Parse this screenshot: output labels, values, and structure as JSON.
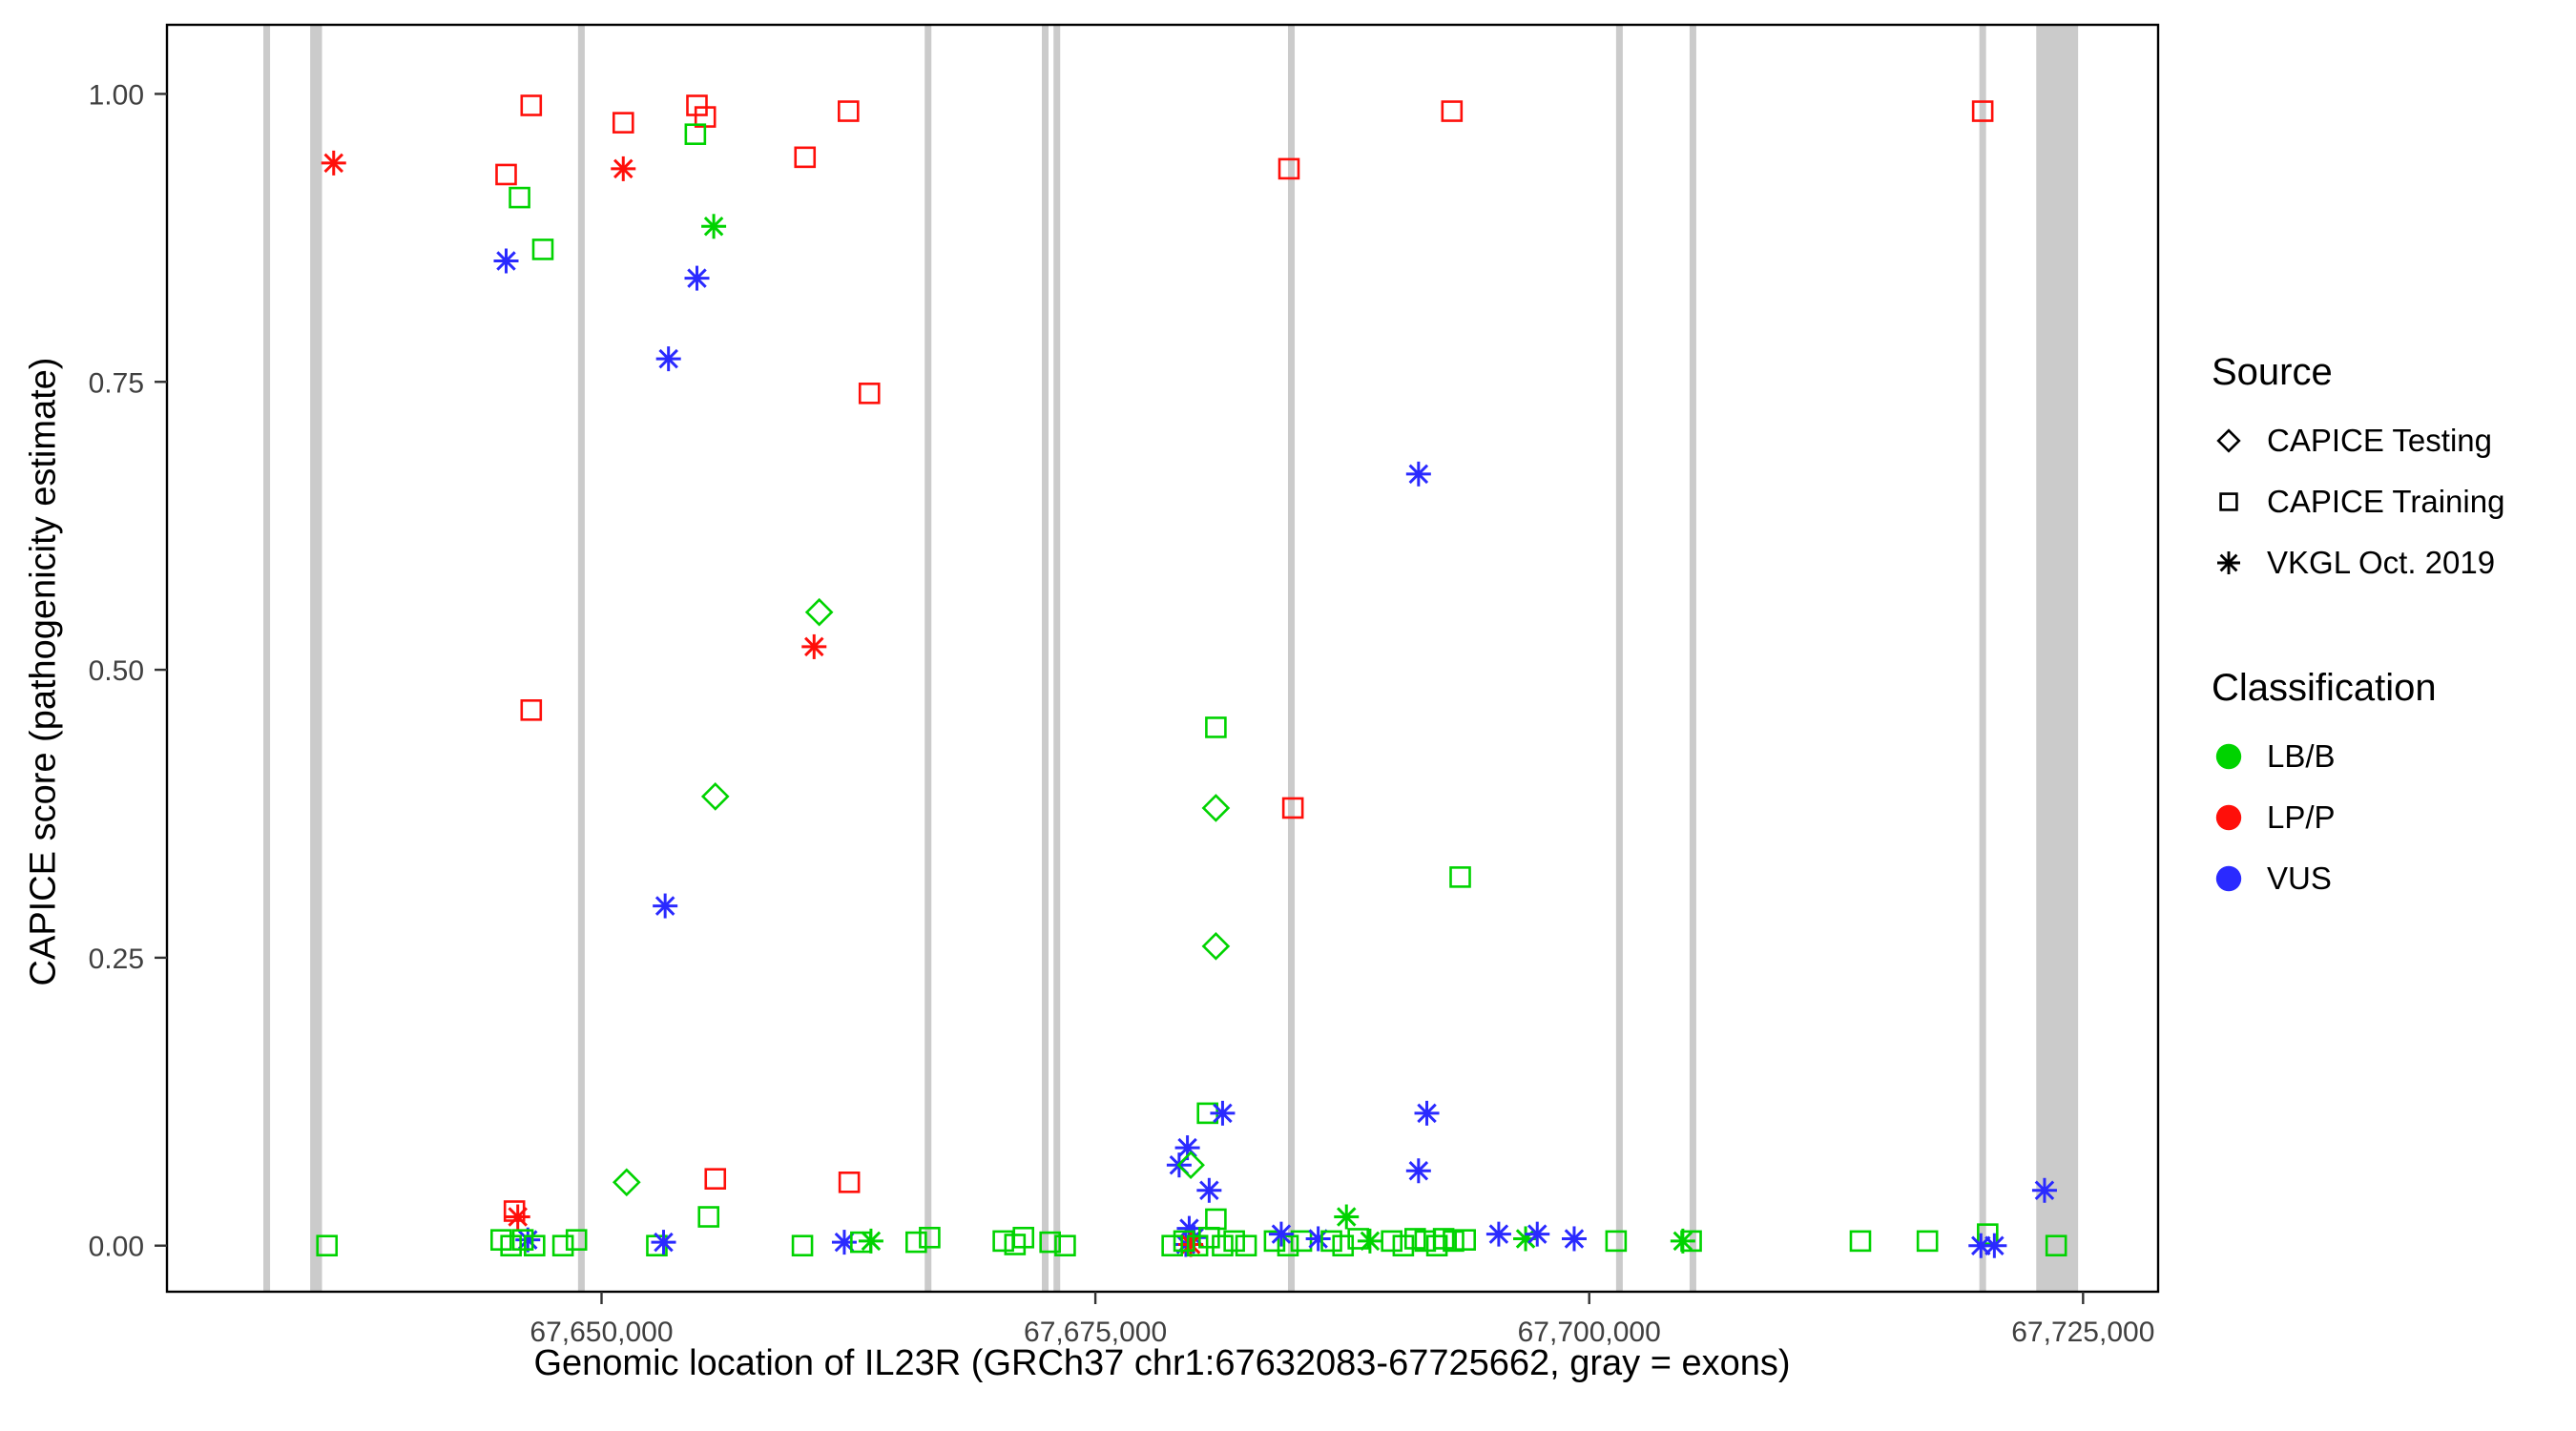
{
  "chart_data": {
    "type": "scatter",
    "xlabel": "Genomic location of IL23R (GRCh37 chr1:67632083-67725662, gray = exons)",
    "ylabel": "CAPICE score (pathogenicity estimate)",
    "xlim": [
      67628000,
      67728800
    ],
    "ylim": [
      -0.04,
      1.06
    ],
    "grid": false,
    "panel_border_color": "#000000",
    "exon_color": "#cbcbcb",
    "tick_label_color": "#404040",
    "x_ticks": [
      {
        "value": 67650000,
        "label": "67,650,000"
      },
      {
        "value": 67675000,
        "label": "67,675,000"
      },
      {
        "value": 67700000,
        "label": "67,700,000"
      },
      {
        "value": 67725000,
        "label": "67,725,000"
      }
    ],
    "y_ticks": [
      {
        "value": 0.0,
        "label": "0.00"
      },
      {
        "value": 0.25,
        "label": "0.25"
      },
      {
        "value": 0.5,
        "label": "0.50"
      },
      {
        "value": 0.75,
        "label": "0.75"
      },
      {
        "value": 1.0,
        "label": "1.00"
      }
    ],
    "classification_colors": {
      "LB/B": "#00D300",
      "LP/P": "#FF0F0A",
      "VUS": "#2A2AFF"
    },
    "shape_source_map": {
      "diamond": "CAPICE Testing",
      "square": "CAPICE Training",
      "asterisk": "VKGL Oct. 2019"
    },
    "exons": [
      [
        67632880,
        67633220
      ],
      [
        67635250,
        67635850
      ],
      [
        67648810,
        67649150
      ],
      [
        67666360,
        67666700
      ],
      [
        67672290,
        67672630
      ],
      [
        67672880,
        67673220
      ],
      [
        67684750,
        67685090
      ],
      [
        67701360,
        67701700
      ],
      [
        67705080,
        67705420
      ],
      [
        67719750,
        67720090
      ],
      [
        67722630,
        67724750
      ]
    ],
    "point_format": [
      "x_genomic_position",
      "capice_score",
      "classification",
      "shape"
    ],
    "points": [
      [
        67636440,
        0.94,
        "LP/P",
        "asterisk"
      ],
      [
        67645170,
        0.93,
        "LP/P",
        "square"
      ],
      [
        67646440,
        0.99,
        "LP/P",
        "square"
      ],
      [
        67645850,
        0.91,
        "LB/B",
        "square"
      ],
      [
        67647030,
        0.865,
        "LB/B",
        "square"
      ],
      [
        67645170,
        0.855,
        "VUS",
        "asterisk"
      ],
      [
        67651100,
        0.975,
        "LP/P",
        "square"
      ],
      [
        67651100,
        0.935,
        "LP/P",
        "asterisk"
      ],
      [
        67654830,
        0.99,
        "LP/P",
        "square"
      ],
      [
        67655250,
        0.98,
        "LP/P",
        "square"
      ],
      [
        67654750,
        0.965,
        "LB/B",
        "square"
      ],
      [
        67655680,
        0.885,
        "LB/B",
        "asterisk"
      ],
      [
        67654830,
        0.84,
        "VUS",
        "asterisk"
      ],
      [
        67653390,
        0.77,
        "VUS",
        "asterisk"
      ],
      [
        67660300,
        0.945,
        "LP/P",
        "square"
      ],
      [
        67662500,
        0.985,
        "LP/P",
        "square"
      ],
      [
        67663560,
        0.74,
        "LP/P",
        "square"
      ],
      [
        67684800,
        0.935,
        "LP/P",
        "square"
      ],
      [
        67693050,
        0.985,
        "LP/P",
        "square"
      ],
      [
        67719920,
        0.985,
        "LP/P",
        "square"
      ],
      [
        67691360,
        0.67,
        "VUS",
        "asterisk"
      ],
      [
        67661020,
        0.55,
        "LB/B",
        "diamond"
      ],
      [
        67660760,
        0.52,
        "LP/P",
        "asterisk"
      ],
      [
        67646440,
        0.465,
        "LP/P",
        "square"
      ],
      [
        67655760,
        0.39,
        "LB/B",
        "diamond"
      ],
      [
        67653220,
        0.295,
        "VUS",
        "asterisk"
      ],
      [
        67681100,
        0.45,
        "LB/B",
        "square"
      ],
      [
        67681100,
        0.38,
        "LB/B",
        "diamond"
      ],
      [
        67685000,
        0.38,
        "LP/P",
        "square"
      ],
      [
        67681100,
        0.26,
        "LB/B",
        "diamond"
      ],
      [
        67693470,
        0.32,
        "LB/B",
        "square"
      ],
      [
        67691780,
        0.115,
        "VUS",
        "asterisk"
      ],
      [
        67691360,
        0.065,
        "VUS",
        "asterisk"
      ],
      [
        67636100,
        0.0,
        "LB/B",
        "square"
      ],
      [
        67645590,
        0.03,
        "LP/P",
        "square"
      ],
      [
        67645760,
        0.025,
        "LP/P",
        "asterisk"
      ],
      [
        67646270,
        0.005,
        "VUS",
        "asterisk"
      ],
      [
        67644920,
        0.005,
        "LB/B",
        "square"
      ],
      [
        67645420,
        0.0,
        "LB/B",
        "square"
      ],
      [
        67646020,
        0.005,
        "LB/B",
        "square"
      ],
      [
        67646610,
        0.0,
        "LB/B",
        "square"
      ],
      [
        67648050,
        0.0,
        "LB/B",
        "square"
      ],
      [
        67648730,
        0.005,
        "LB/B",
        "square"
      ],
      [
        67651270,
        0.055,
        "LB/B",
        "diamond"
      ],
      [
        67652800,
        0.0,
        "LB/B",
        "square"
      ],
      [
        67653140,
        0.003,
        "VUS",
        "asterisk"
      ],
      [
        67655420,
        0.025,
        "LB/B",
        "square"
      ],
      [
        67655760,
        0.058,
        "LP/P",
        "square"
      ],
      [
        67660170,
        0.0,
        "LB/B",
        "square"
      ],
      [
        67662540,
        0.055,
        "LP/P",
        "square"
      ],
      [
        67662290,
        0.003,
        "VUS",
        "asterisk"
      ],
      [
        67663130,
        0.003,
        "LB/B",
        "square"
      ],
      [
        67663640,
        0.004,
        "LB/B",
        "asterisk"
      ],
      [
        67665930,
        0.003,
        "LB/B",
        "square"
      ],
      [
        67666610,
        0.007,
        "LB/B",
        "square"
      ],
      [
        67670340,
        0.004,
        "LB/B",
        "square"
      ],
      [
        67670930,
        0.001,
        "LB/B",
        "square"
      ],
      [
        67671360,
        0.007,
        "LB/B",
        "square"
      ],
      [
        67672710,
        0.003,
        "LB/B",
        "square"
      ],
      [
        67673470,
        0.0,
        "LB/B",
        "square"
      ],
      [
        67679660,
        0.085,
        "VUS",
        "asterisk"
      ],
      [
        67679240,
        0.07,
        "VUS",
        "asterisk"
      ],
      [
        67679830,
        0.07,
        "LB/B",
        "diamond"
      ],
      [
        67680680,
        0.115,
        "LB/B",
        "square"
      ],
      [
        67681440,
        0.115,
        "VUS",
        "asterisk"
      ],
      [
        67680760,
        0.048,
        "VUS",
        "asterisk"
      ],
      [
        67681100,
        0.023,
        "LB/B",
        "square"
      ],
      [
        67679750,
        0.015,
        "VUS",
        "asterisk"
      ],
      [
        67680000,
        0.007,
        "VUS",
        "asterisk"
      ],
      [
        67679580,
        0.001,
        "VUS",
        "asterisk"
      ],
      [
        67679830,
        0.001,
        "LP/P",
        "asterisk"
      ],
      [
        67678890,
        0.0,
        "LB/B",
        "square"
      ],
      [
        67679490,
        0.004,
        "LB/B",
        "square"
      ],
      [
        67680170,
        0.0,
        "LB/B",
        "square"
      ],
      [
        67680760,
        0.007,
        "LB/B",
        "square"
      ],
      [
        67681440,
        0.0,
        "LB/B",
        "square"
      ],
      [
        67682030,
        0.004,
        "LB/B",
        "square"
      ],
      [
        67682630,
        0.0,
        "LB/B",
        "square"
      ],
      [
        67684070,
        0.004,
        "LB/B",
        "square"
      ],
      [
        67684750,
        0.0,
        "LB/B",
        "square"
      ],
      [
        67685430,
        0.004,
        "LB/B",
        "square"
      ],
      [
        67684410,
        0.01,
        "VUS",
        "asterisk"
      ],
      [
        67686280,
        0.006,
        "VUS",
        "asterisk"
      ],
      [
        67687710,
        0.025,
        "LB/B",
        "asterisk"
      ],
      [
        67686950,
        0.004,
        "LB/B",
        "square"
      ],
      [
        67687540,
        0.0,
        "LB/B",
        "square"
      ],
      [
        67688310,
        0.006,
        "LB/B",
        "square"
      ],
      [
        67688900,
        0.004,
        "LB/B",
        "asterisk"
      ],
      [
        67690000,
        0.004,
        "LB/B",
        "square"
      ],
      [
        67690590,
        0.0,
        "LB/B",
        "square"
      ],
      [
        67691190,
        0.006,
        "LB/B",
        "square"
      ],
      [
        67691700,
        0.004,
        "LB/B",
        "square"
      ],
      [
        67692290,
        0.0,
        "LB/B",
        "square"
      ],
      [
        67692630,
        0.006,
        "LB/B",
        "square"
      ],
      [
        67693130,
        0.004,
        "LB/B",
        "square"
      ],
      [
        67693720,
        0.005,
        "LB/B",
        "square"
      ],
      [
        67695420,
        0.01,
        "VUS",
        "asterisk"
      ],
      [
        67696780,
        0.006,
        "LB/B",
        "asterisk"
      ],
      [
        67697370,
        0.01,
        "VUS",
        "asterisk"
      ],
      [
        67699240,
        0.006,
        "VUS",
        "asterisk"
      ],
      [
        67701360,
        0.004,
        "LB/B",
        "square"
      ],
      [
        67704740,
        0.004,
        "LB/B",
        "asterisk"
      ],
      [
        67705160,
        0.004,
        "LB/B",
        "square"
      ],
      [
        67713730,
        0.004,
        "LB/B",
        "square"
      ],
      [
        67717120,
        0.004,
        "LB/B",
        "square"
      ],
      [
        67720170,
        0.01,
        "LB/B",
        "square"
      ],
      [
        67719830,
        0.0,
        "VUS",
        "asterisk"
      ],
      [
        67720510,
        0.0,
        "VUS",
        "asterisk"
      ],
      [
        67723050,
        0.048,
        "VUS",
        "asterisk"
      ],
      [
        67723640,
        0.0,
        "LB/B",
        "square"
      ]
    ],
    "legend": {
      "source_title": "Source",
      "source_items": [
        {
          "label": "CAPICE Testing",
          "shape": "diamond"
        },
        {
          "label": "CAPICE Training",
          "shape": "square"
        },
        {
          "label": "VKGL Oct. 2019",
          "shape": "asterisk"
        }
      ],
      "classification_title": "Classification",
      "classification_items": [
        {
          "label": "LB/B",
          "color": "#00D300"
        },
        {
          "label": "LP/P",
          "color": "#FF0F0A"
        },
        {
          "label": "VUS",
          "color": "#2A2AFF"
        }
      ]
    }
  }
}
